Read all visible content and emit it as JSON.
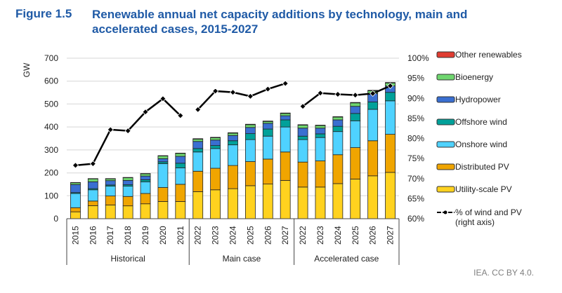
{
  "figure_label": "Figure 1.5",
  "chart_data": {
    "type": "bar",
    "stacked": true,
    "title": "Renewable annual net capacity additions by technology, main and accelerated cases, 2015-2027",
    "ylabel": "GW",
    "ylim": [
      0,
      700
    ],
    "yticks": [
      "0",
      "100",
      "200",
      "300",
      "400",
      "500",
      "600",
      "700"
    ],
    "y2lim": [
      60,
      100
    ],
    "y2ticks": [
      "60%",
      "65%",
      "70%",
      "75%",
      "80%",
      "85%",
      "90%",
      "95%",
      "100%"
    ],
    "grid": true,
    "legend_position": "right",
    "groups": [
      {
        "label": "Historical",
        "categories": [
          "2015",
          "2016",
          "2017",
          "2018",
          "2019",
          "2020",
          "2021"
        ]
      },
      {
        "label": "Main case",
        "categories": [
          "2022",
          "2023",
          "2024",
          "2025",
          "2026",
          "2027"
        ]
      },
      {
        "label": "Accelerated case",
        "categories": [
          "2022",
          "2023",
          "2024",
          "2025",
          "2026",
          "2027"
        ]
      }
    ],
    "series": [
      {
        "name": "Utility-scale PV",
        "color": "#ffd21f",
        "values": [
          30,
          57,
          60,
          56,
          65,
          75,
          75,
          118,
          126,
          131,
          144,
          151,
          167,
          138,
          138,
          153,
          173,
          187,
          202
        ]
      },
      {
        "name": "Distributed PV",
        "color": "#f0a500",
        "values": [
          18,
          20,
          39,
          41,
          45,
          61,
          75,
          89,
          94,
          101,
          105,
          109,
          124,
          109,
          114,
          126,
          137,
          153,
          166
        ]
      },
      {
        "name": "Onshore wind",
        "color": "#4fd2ff",
        "values": [
          62,
          49,
          43,
          45,
          51,
          104,
          72,
          84,
          86,
          90,
          96,
          100,
          109,
          98,
          102,
          101,
          117,
          137,
          146
        ]
      },
      {
        "name": "Offshore wind",
        "color": "#00a19a",
        "values": [
          4,
          5,
          5,
          6,
          9,
          8,
          20,
          15,
          13,
          18,
          26,
          31,
          31,
          15,
          16,
          23,
          32,
          32,
          37
        ]
      },
      {
        "name": "Hydropower",
        "color": "#3a6fd1",
        "values": [
          35,
          30,
          19,
          19,
          16,
          14,
          30,
          31,
          24,
          23,
          27,
          25,
          18,
          35,
          25,
          28,
          31,
          37,
          28
        ]
      },
      {
        "name": "Bioenergy",
        "color": "#6fd66f",
        "values": [
          8,
          13,
          8,
          12,
          10,
          12,
          13,
          10,
          10,
          10,
          12,
          8,
          10,
          13,
          11,
          12,
          15,
          12,
          13
        ]
      },
      {
        "name": "Other renewables",
        "color": "#e03c31",
        "values": [
          1,
          1,
          1,
          1,
          1,
          1,
          1,
          2,
          2,
          2,
          2,
          2,
          2,
          2,
          2,
          2,
          2,
          2,
          2
        ]
      }
    ],
    "line_series": {
      "name": "% of wind and PV (right axis)",
      "axis": "right",
      "color": "#000000",
      "values": [
        73.3,
        73.7,
        82.2,
        81.9,
        86.6,
        89.9,
        85.7,
        87.2,
        91.8,
        91.5,
        90.5,
        92.3,
        93.7,
        88.0,
        91.3,
        91.0,
        90.8,
        91.2,
        93.1
      ]
    }
  },
  "legend_line_label_1": "% of wind and PV",
  "legend_line_label_2": "(right axis)",
  "footer": "IEA. CC BY 4.0."
}
